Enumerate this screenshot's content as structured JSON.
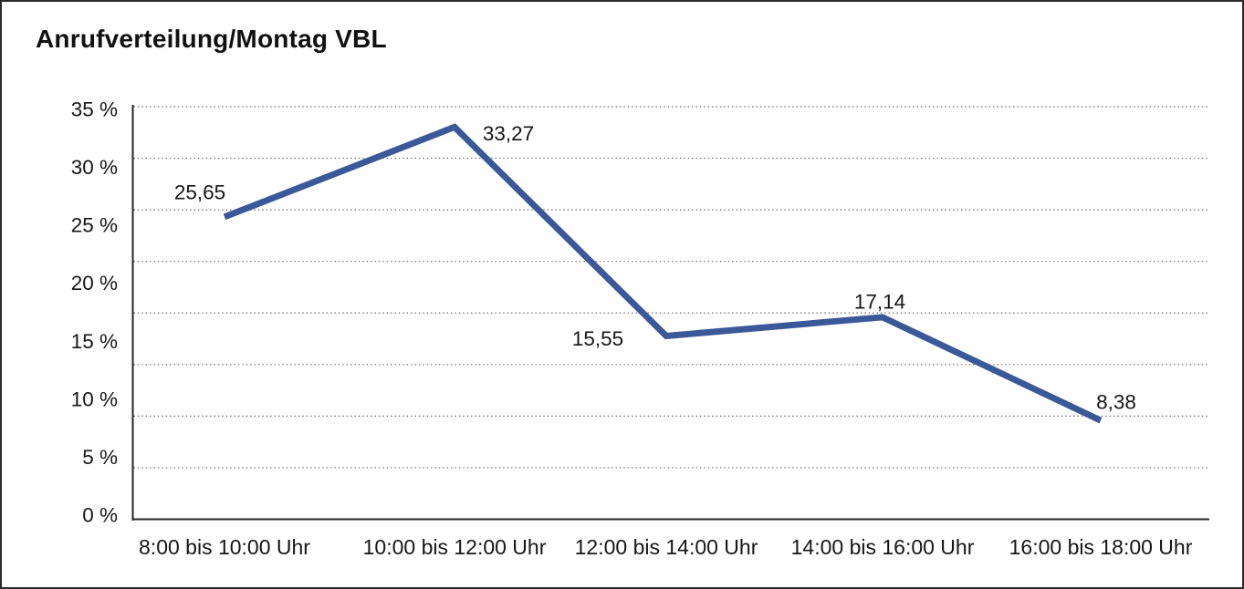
{
  "title": "Anrufverteilung/Montag VBL",
  "chart_data": {
    "type": "line",
    "title": "Anrufverteilung/Montag VBL",
    "categories": [
      "8:00 bis 10:00 Uhr",
      "10:00 bis 12:00 Uhr",
      "12:00 bis 14:00 Uhr",
      "14:00 bis 16:00 Uhr",
      "16:00 bis 18:00 Uhr"
    ],
    "values": [
      25.65,
      33.27,
      15.55,
      17.14,
      8.38
    ],
    "data_labels": [
      "25,65",
      "33,27",
      "15,55",
      "17,14",
      "8,38"
    ],
    "y_tick_labels": [
      "35 %",
      "30 %",
      "25 %",
      "20 %",
      "15 %",
      "10 %",
      "5 %",
      "0 %"
    ],
    "ylim": [
      0,
      35
    ],
    "xlabel": "",
    "ylabel": "",
    "grid": "dotted horizontal, 8 even intervals",
    "legend": "none",
    "line_color": "#3B5898",
    "text_color": "#161616",
    "axis_color": "#262626",
    "grid_color": "#5f5f5f",
    "background_color": "#ffffff",
    "border_color": "#2b2b2b"
  }
}
